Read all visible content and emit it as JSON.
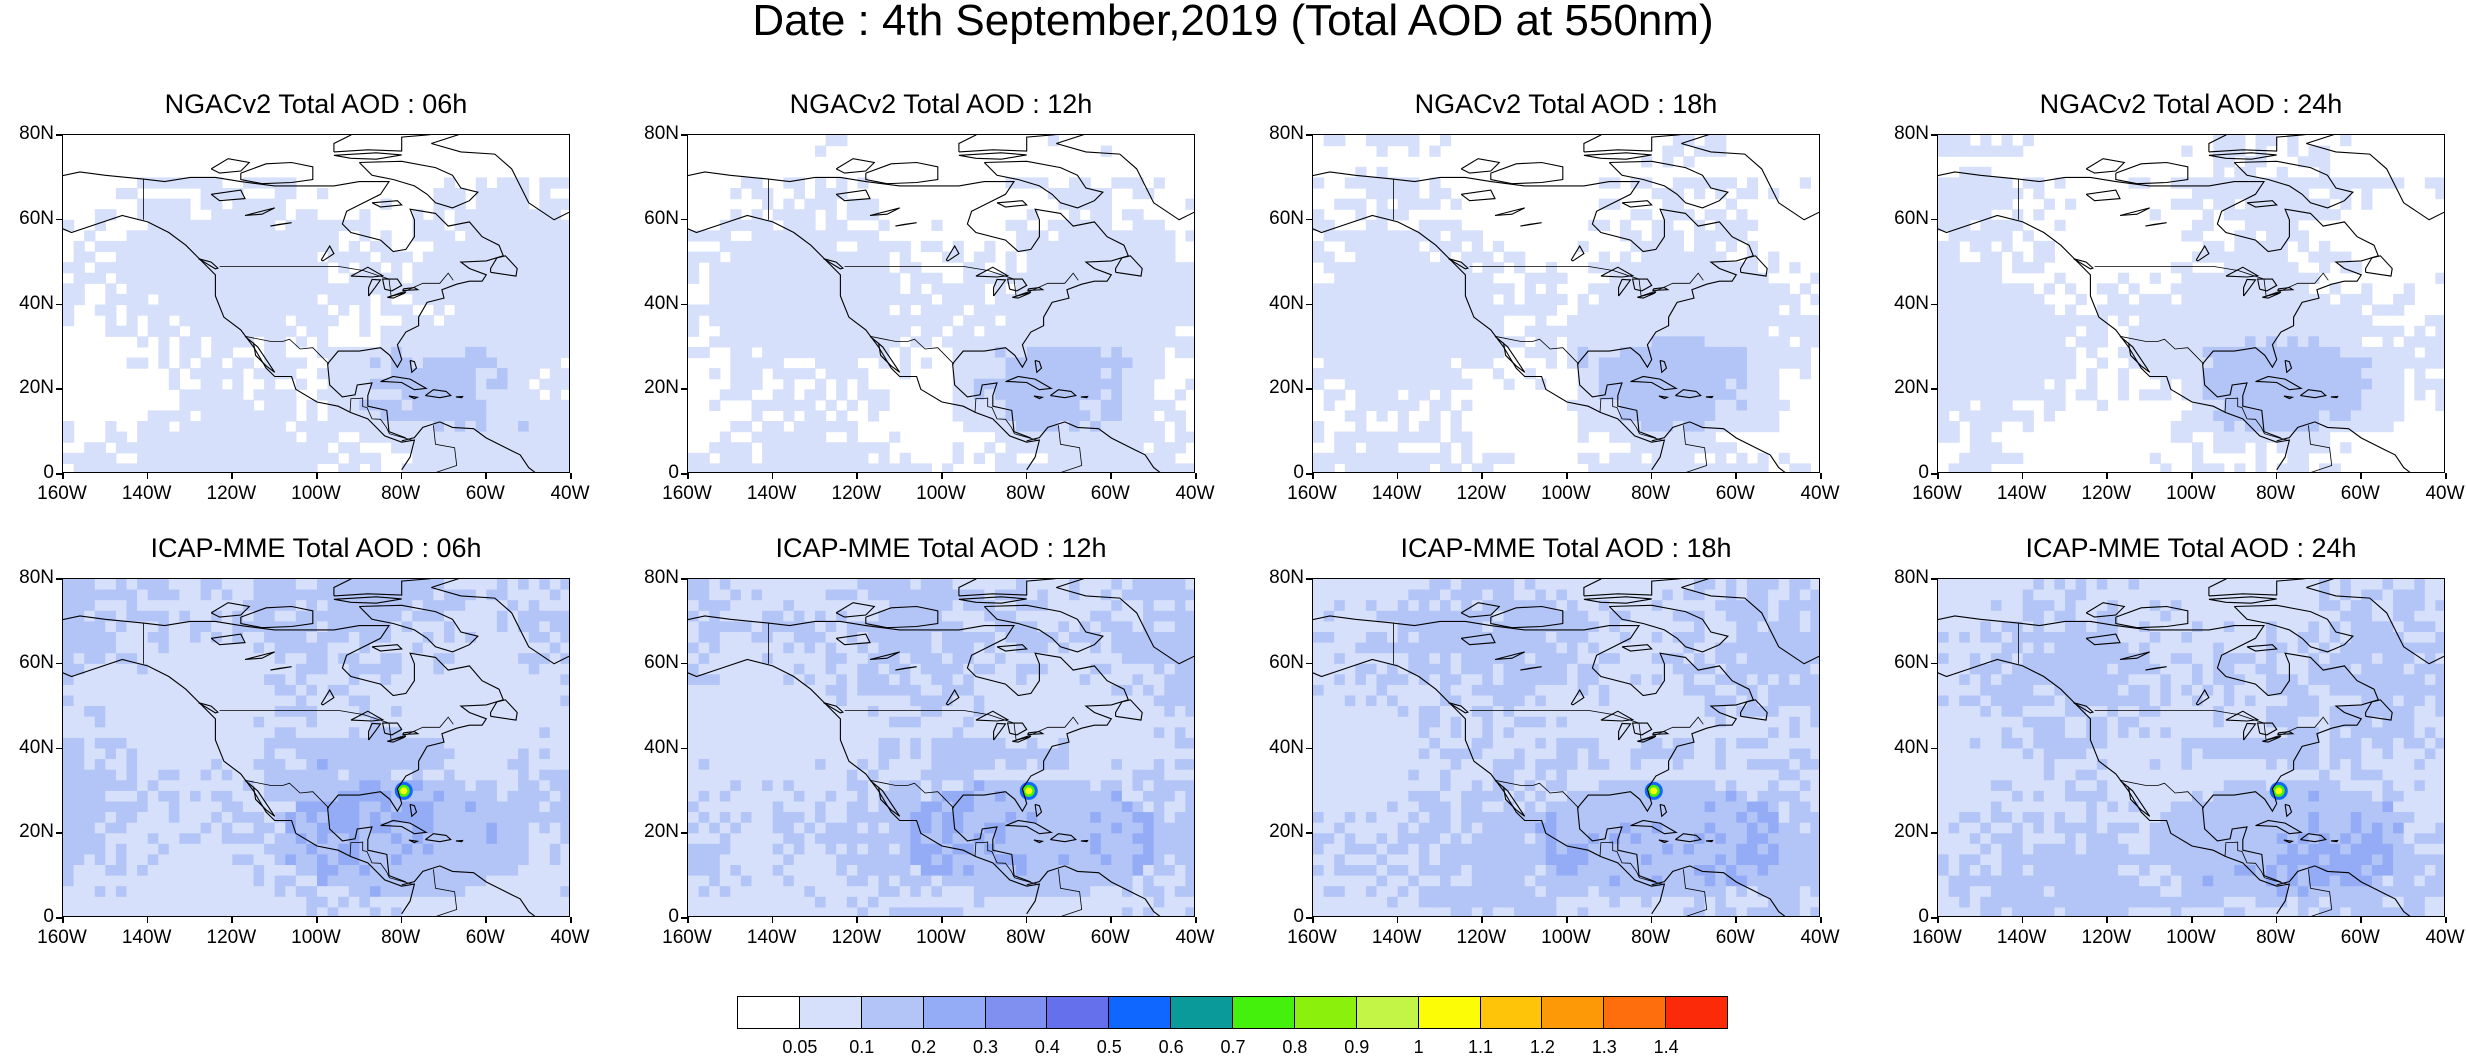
{
  "title": "Date : 4th September,2019 (Total AOD at 550nm)",
  "panels": [
    {
      "title": "NGACv2 Total AOD : 06h",
      "model": "NGACv2",
      "hour": "06h"
    },
    {
      "title": "NGACv2 Total AOD : 12h",
      "model": "NGACv2",
      "hour": "12h"
    },
    {
      "title": "NGACv2 Total AOD : 18h",
      "model": "NGACv2",
      "hour": "18h"
    },
    {
      "title": "NGACv2 Total AOD : 24h",
      "model": "NGACv2",
      "hour": "24h"
    },
    {
      "title": "ICAP-MME Total AOD : 06h",
      "model": "ICAP-MME",
      "hour": "06h"
    },
    {
      "title": "ICAP-MME Total AOD : 12h",
      "model": "ICAP-MME",
      "hour": "12h"
    },
    {
      "title": "ICAP-MME Total AOD : 18h",
      "model": "ICAP-MME",
      "hour": "18h"
    },
    {
      "title": "ICAP-MME Total AOD : 24h",
      "model": "ICAP-MME",
      "hour": "24h"
    }
  ],
  "axes": {
    "lat_ticks": [
      "80N",
      "60N",
      "40N",
      "20N",
      "0"
    ],
    "lon_ticks": [
      "160W",
      "140W",
      "120W",
      "100W",
      "80W",
      "60W",
      "40W"
    ]
  },
  "colorbar": {
    "labels": [
      "0.05",
      "0.1",
      "0.2",
      "0.3",
      "0.4",
      "0.5",
      "0.6",
      "0.7",
      "0.8",
      "0.9",
      "1",
      "1.1",
      "1.2",
      "1.3",
      "1.4"
    ],
    "colors": [
      "#ffffff",
      "#d6e0fb",
      "#b3c4f7",
      "#94acf5",
      "#8090f0",
      "#6470ec",
      "#0f67ff",
      "#0a9a99",
      "#44f10d",
      "#8bf00c",
      "#c2f545",
      "#fbfc06",
      "#fdc40a",
      "#fd9807",
      "#fe6e0c",
      "#fb2a09"
    ]
  }
}
